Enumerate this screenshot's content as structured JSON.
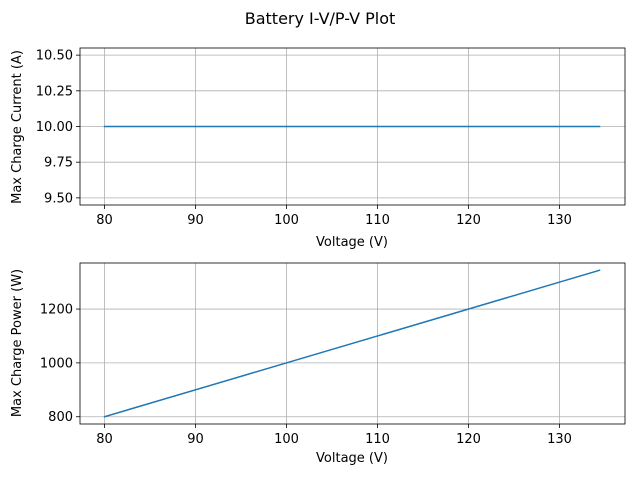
{
  "suptitle": "Battery I-V/P-V Plot",
  "line_color": "#1f77b4",
  "chart_data": [
    {
      "type": "line",
      "xlabel": "Voltage (V)",
      "ylabel": "Max Charge Current (A)",
      "xlim": [
        77.3,
        137.2
      ],
      "ylim": [
        9.45,
        10.55
      ],
      "xticks": [
        80,
        90,
        100,
        110,
        120,
        130
      ],
      "yticks": [
        9.5,
        9.75,
        10.0,
        10.25,
        10.5
      ],
      "ytick_labels": [
        "9.50",
        "9.75",
        "10.00",
        "10.25",
        "10.50"
      ],
      "grid": true,
      "series": [
        {
          "x": [
            80,
            134.4
          ],
          "y": [
            10.0,
            10.0
          ]
        }
      ]
    },
    {
      "type": "line",
      "xlabel": "Voltage (V)",
      "ylabel": "Max Charge Power (W)",
      "xlim": [
        77.3,
        137.2
      ],
      "ylim": [
        773,
        1371
      ],
      "xticks": [
        80,
        90,
        100,
        110,
        120,
        130
      ],
      "yticks": [
        800,
        1000,
        1200
      ],
      "ytick_labels": [
        "800",
        "1000",
        "1200"
      ],
      "grid": true,
      "series": [
        {
          "x": [
            80,
            134.4
          ],
          "y": [
            800,
            1344
          ]
        }
      ]
    }
  ]
}
